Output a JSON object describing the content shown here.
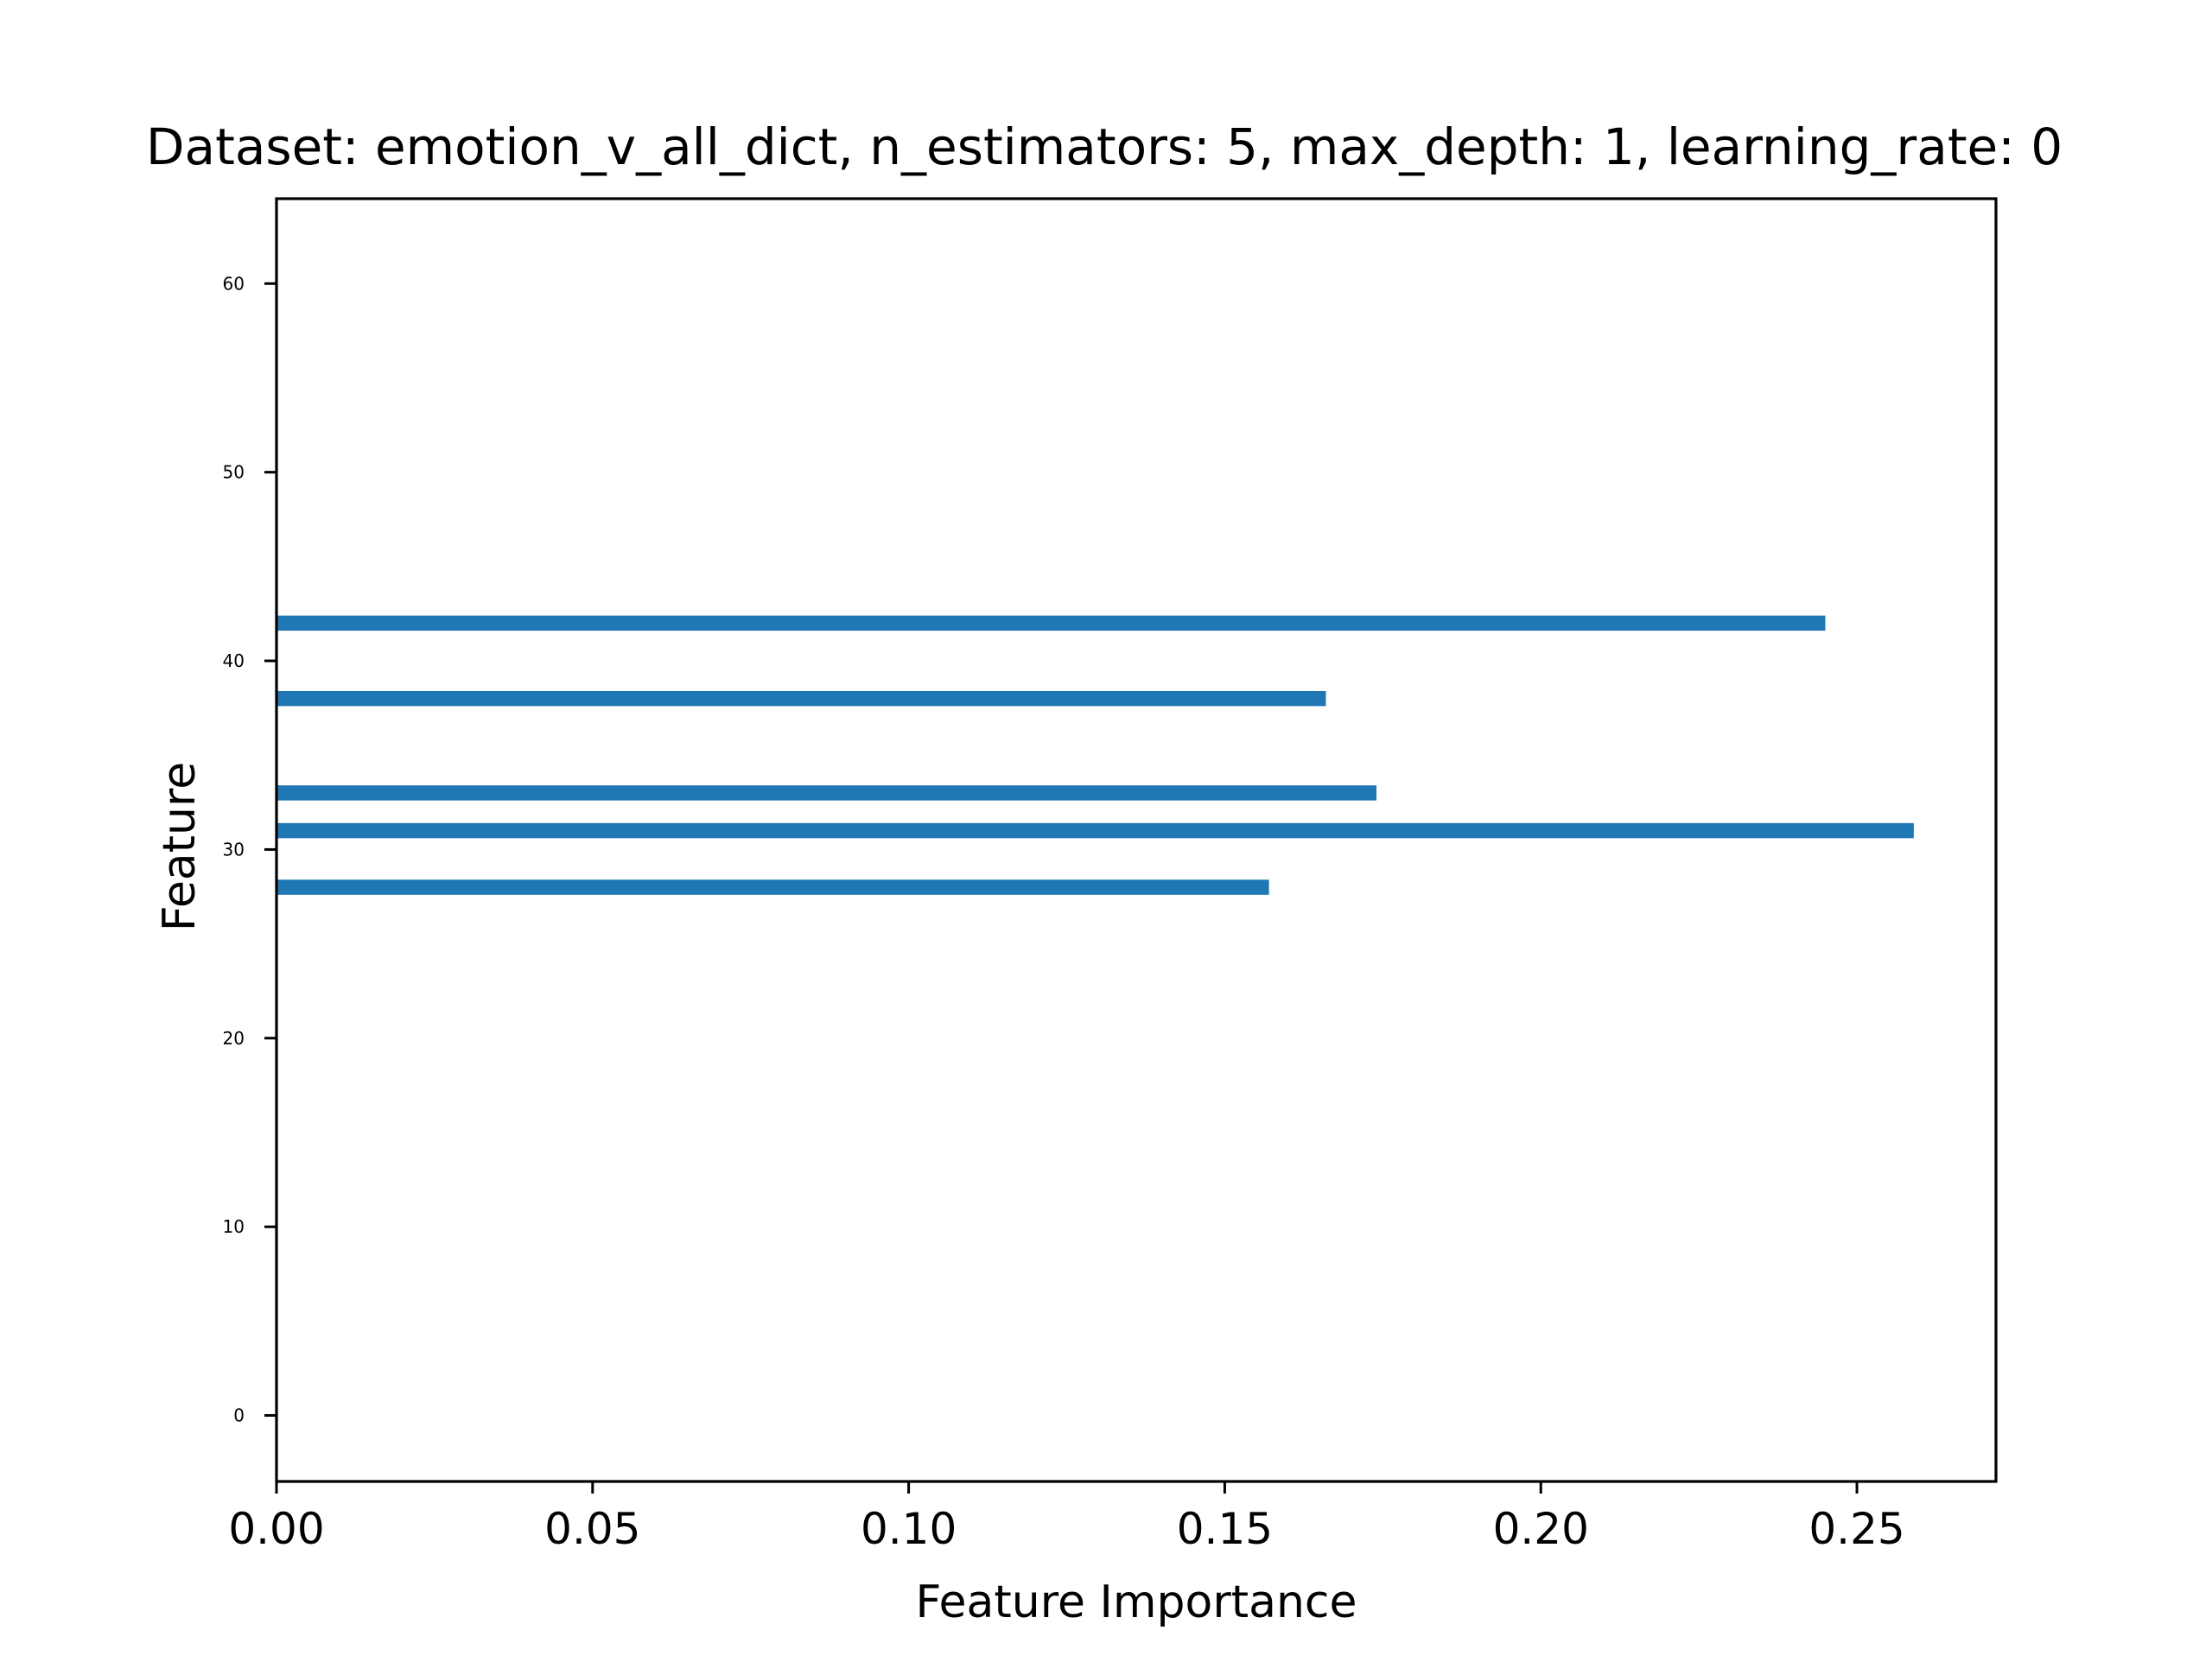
{
  "chart_data": {
    "type": "bar",
    "orientation": "horizontal",
    "title": "Dataset: emotion_v_all_dict, n_estimators: 5, max_depth: 1, learning_rate: 0",
    "xlabel": "Feature Importance",
    "ylabel": "Feature",
    "xlim": [
      0,
      0.272
    ],
    "ylim": [
      -3.5,
      64.5
    ],
    "xticks": [
      "0.00",
      "0.05",
      "0.10",
      "0.15",
      "0.20",
      "0.25"
    ],
    "yticks": [
      "0",
      "10",
      "20",
      "30",
      "40",
      "50",
      "60"
    ],
    "bar_color": "#1f77b4",
    "grid": false,
    "legend": false,
    "bars": [
      {
        "feature": 28,
        "importance": 0.157
      },
      {
        "feature": 31,
        "importance": 0.259
      },
      {
        "feature": 33,
        "importance": 0.174
      },
      {
        "feature": 38,
        "importance": 0.166
      },
      {
        "feature": 42,
        "importance": 0.245
      }
    ]
  }
}
